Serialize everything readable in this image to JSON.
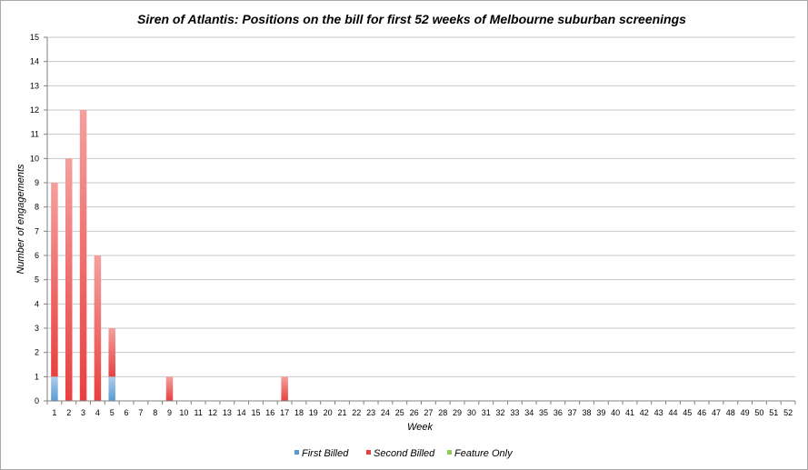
{
  "chart_data": {
    "type": "bar",
    "stacked": true,
    "title": "Siren of Atlantis: Positions on the bill for first 52 weeks of Melbourne suburban screenings",
    "xlabel": "Week",
    "ylabel": "Number of engagements",
    "ylim": [
      0,
      15
    ],
    "yticks": [
      "0",
      "1",
      "2",
      "3",
      "4",
      "5",
      "6",
      "7",
      "8",
      "9",
      "10",
      "11",
      "12",
      "13",
      "14",
      "15"
    ],
    "categories": [
      "1",
      "2",
      "3",
      "4",
      "5",
      "6",
      "7",
      "8",
      "9",
      "10",
      "11",
      "12",
      "13",
      "14",
      "15",
      "16",
      "17",
      "18",
      "19",
      "20",
      "21",
      "22",
      "23",
      "24",
      "25",
      "26",
      "27",
      "28",
      "29",
      "30",
      "31",
      "32",
      "33",
      "34",
      "35",
      "36",
      "37",
      "38",
      "39",
      "40",
      "41",
      "42",
      "43",
      "44",
      "45",
      "46",
      "47",
      "48",
      "49",
      "50",
      "51",
      "52"
    ],
    "grid": true,
    "legend_position": "bottom",
    "series": [
      {
        "name": "First Billed",
        "color": "#5b9bd5",
        "values": [
          1,
          0,
          0,
          0,
          1,
          0,
          0,
          0,
          0,
          0,
          0,
          0,
          0,
          0,
          0,
          0,
          0,
          0,
          0,
          0,
          0,
          0,
          0,
          0,
          0,
          0,
          0,
          0,
          0,
          0,
          0,
          0,
          0,
          0,
          0,
          0,
          0,
          0,
          0,
          0,
          0,
          0,
          0,
          0,
          0,
          0,
          0,
          0,
          0,
          0,
          0,
          0
        ]
      },
      {
        "name": "Second Billed",
        "color": "#e8403f",
        "values": [
          8,
          10,
          12,
          6,
          2,
          0,
          0,
          0,
          1,
          0,
          0,
          0,
          0,
          0,
          0,
          0,
          1,
          0,
          0,
          0,
          0,
          0,
          0,
          0,
          0,
          0,
          0,
          0,
          0,
          0,
          0,
          0,
          0,
          0,
          0,
          0,
          0,
          0,
          0,
          0,
          0,
          0,
          0,
          0,
          0,
          0,
          0,
          0,
          0,
          0,
          0,
          0
        ]
      },
      {
        "name": "Feature Only",
        "color": "#8ccf4d",
        "values": [
          0,
          0,
          0,
          0,
          0,
          0,
          0,
          0,
          0,
          0,
          0,
          0,
          0,
          0,
          0,
          0,
          0,
          0,
          0,
          0,
          0,
          0,
          0,
          0,
          0,
          0,
          0,
          0,
          0,
          0,
          0,
          0,
          0,
          0,
          0,
          0,
          0,
          0,
          0,
          0,
          0,
          0,
          0,
          0,
          0,
          0,
          0,
          0,
          0,
          0,
          0,
          0
        ]
      }
    ]
  }
}
